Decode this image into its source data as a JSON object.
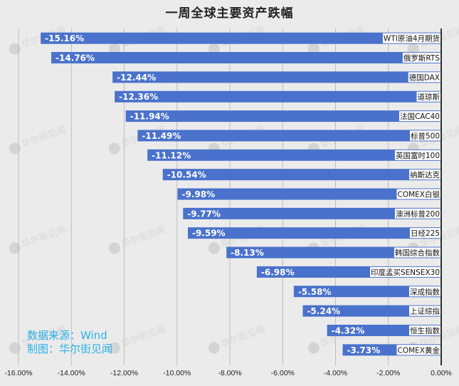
{
  "chart_data": {
    "type": "bar",
    "orientation": "horizontal",
    "title": "一周全球主要资产跌幅",
    "xlabel": "",
    "ylabel": "",
    "xlim": [
      -16,
      0
    ],
    "x_ticks": [
      -16,
      -14,
      -12,
      -10,
      -8,
      -6,
      -4,
      -2,
      0
    ],
    "x_tick_labels": [
      "-16.00%",
      "-14.00%",
      "-12.00%",
      "-10.00%",
      "-8.00%",
      "-6.00%",
      "-4.00%",
      "-2.00%",
      "0.00%"
    ],
    "grid": true,
    "bar_color": "#4a72cc",
    "categories": [
      "WTI原油4月期货",
      "俄罗斯RTS",
      "德国DAX",
      "道琼斯",
      "法国CAC40",
      "标普500",
      "英国富时100",
      "纳斯达克",
      "COMEX白银",
      "澳洲标普200",
      "日经225",
      "韩国综合指数",
      "印度孟买SENSEX30",
      "深成指数",
      "上证综指",
      "恒生指数",
      "COMEX黄金"
    ],
    "values": [
      -15.16,
      -14.76,
      -12.44,
      -12.36,
      -11.94,
      -11.49,
      -11.12,
      -10.54,
      -9.98,
      -9.77,
      -9.59,
      -8.13,
      -6.98,
      -5.58,
      -5.24,
      -4.32,
      -3.73
    ],
    "data_labels": [
      "-15.16%",
      "-14.76%",
      "-12.44%",
      "-12.36%",
      "-11.94%",
      "-11.49%",
      "-11.12%",
      "-10.54%",
      "-9.98%",
      "-9.77%",
      "-9.59%",
      "-8.13%",
      "-6.98%",
      "-5.58%",
      "-5.24%",
      "-4.32%",
      "-3.73%"
    ]
  },
  "source": {
    "line1": "数据来源：Wind",
    "line2": "制图：华尔街见闻"
  },
  "watermark_text": "华尔街见闻",
  "colors": {
    "bar": "#4a72cc",
    "source_text": "#2ab0e6",
    "background": "#ebebeb"
  }
}
